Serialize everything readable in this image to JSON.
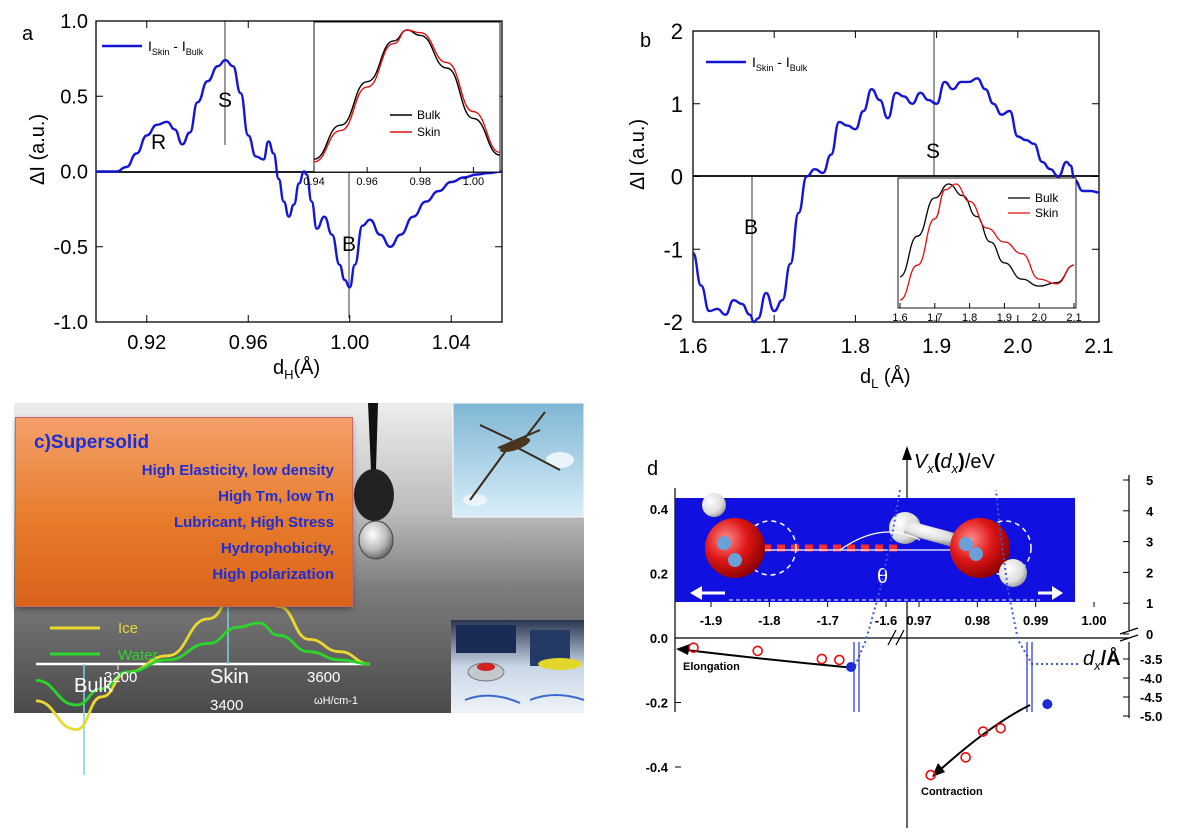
{
  "panel_a": {
    "label": "a",
    "legend": "I_Skin - I_Bulk",
    "legend_main": "I",
    "legend_sub1": "Skin",
    "legend_mid": " - I",
    "legend_sub2": "Bulk",
    "ylabel": "ΔI (a.u.)",
    "xlabel_main": "d",
    "xlabel_sub": "H",
    "xlabel_unit": "(Å)",
    "annotations": [
      "R",
      "S",
      "B"
    ],
    "inset_legend": [
      "Bulk",
      "Skin"
    ]
  },
  "panel_b": {
    "label": "b",
    "legend_main": "I",
    "legend_sub1": "Skin",
    "legend_mid": " - I",
    "legend_sub2": "Bulk",
    "ylabel": "ΔI (a.u.)",
    "xlabel_main": "d",
    "xlabel_sub": "L",
    "xlabel_unit": " (Å)",
    "annotations": [
      "S",
      "B"
    ],
    "inset_legend": [
      "Bulk",
      "Skin"
    ]
  },
  "panel_c": {
    "title": "c)Supersolid",
    "lines": [
      "High Elasticity, low density",
      "High Tm, low Tn",
      "Lubricant, High Stress",
      "Hydrophobicity,",
      "High polarization"
    ],
    "spectrum_legend": [
      "Ice",
      "Water"
    ],
    "spectrum_labels": [
      "Bulk",
      "Skin"
    ],
    "spectrum_ticks": [
      "3200",
      "3400",
      "3600"
    ],
    "spectrum_xlabel": "ωH/cm-1"
  },
  "panel_d": {
    "label": "d",
    "ylabel": "Vx(dx)/eV",
    "xlabel": "dx/Å",
    "theta": "θ",
    "left_annotation": "Elongation",
    "right_annotation": "Contraction",
    "left_yticks": [
      "0.4",
      "0.2",
      "0.0",
      "-0.2",
      "-0.4"
    ],
    "top_xticks": [
      "-1.9",
      "-1.8",
      "-1.7",
      "-1.6",
      "0.97",
      "0.98",
      "0.99",
      "1.00"
    ],
    "right_yticks_upper": [
      "5",
      "4",
      "3",
      "2",
      "1",
      "0"
    ],
    "right_yticks_lower": [
      "-3.5",
      "-4.0",
      "-4.5",
      "-5.0"
    ]
  },
  "colors": {
    "diff_curve": "#1515d6",
    "bulk": "#000000",
    "skin": "#e01010",
    "ice": "#e8d830",
    "water": "#2bd62b",
    "card_text": "#1c2fd6",
    "molecule_bg": "#1010e0"
  },
  "chart_data": [
    {
      "panel": "a",
      "type": "line",
      "xlabel": "dH(Å)",
      "ylabel": "ΔI (a.u.)",
      "xlim": [
        0.9,
        1.06
      ],
      "ylim": [
        -1.0,
        1.0
      ],
      "xticks": [
        0.92,
        0.96,
        1.0,
        1.04
      ],
      "yticks": [
        -1.0,
        -0.5,
        0.0,
        0.5,
        1.0
      ],
      "series": [
        {
          "name": "I_Skin - I_Bulk",
          "x": [
            0.9,
            0.908,
            0.912,
            0.916,
            0.92,
            0.924,
            0.928,
            0.931,
            0.934,
            0.937,
            0.94,
            0.944,
            0.948,
            0.951,
            0.954,
            0.957,
            0.96,
            0.963,
            0.966,
            0.968,
            0.97,
            0.972,
            0.974,
            0.976,
            0.978,
            0.98,
            0.982,
            0.983,
            0.985,
            0.987,
            0.99,
            0.993,
            0.996,
            0.998,
            1.0,
            1.002,
            1.005,
            1.008,
            1.012,
            1.016,
            1.02,
            1.025,
            1.03,
            1.035,
            1.04,
            1.045,
            1.05,
            1.055,
            1.06
          ],
          "y": [
            0.0,
            0.0,
            0.03,
            0.12,
            0.24,
            0.31,
            0.33,
            0.28,
            0.18,
            0.26,
            0.46,
            0.6,
            0.7,
            0.74,
            0.7,
            0.52,
            0.24,
            0.1,
            0.08,
            0.2,
            0.12,
            -0.05,
            -0.2,
            -0.3,
            -0.22,
            -0.08,
            0.0,
            -0.02,
            -0.2,
            -0.38,
            -0.3,
            -0.42,
            -0.62,
            -0.72,
            -0.77,
            -0.62,
            -0.36,
            -0.32,
            -0.42,
            -0.5,
            -0.42,
            -0.3,
            -0.2,
            -0.13,
            -0.07,
            -0.04,
            -0.02,
            -0.01,
            0.0
          ]
        }
      ],
      "annotations": [
        {
          "text": "R",
          "x": 0.928,
          "y": 0.33
        },
        {
          "text": "S",
          "x": 0.951,
          "y": 0.74
        },
        {
          "text": "B",
          "x": 1.0,
          "y": -0.77
        }
      ],
      "inset": {
        "xlim": [
          0.94,
          1.01
        ],
        "xticks": [
          0.94,
          0.96,
          0.98,
          1.0
        ],
        "series": [
          {
            "name": "Bulk",
            "x": [
              0.94,
              0.95,
              0.96,
              0.97,
              0.975,
              0.98,
              0.99,
              1.0,
              1.01
            ],
            "y": [
              0.05,
              0.3,
              0.62,
              0.92,
              1.0,
              0.96,
              0.72,
              0.35,
              0.08
            ]
          },
          {
            "name": "Skin",
            "x": [
              0.94,
              0.95,
              0.96,
              0.97,
              0.975,
              0.98,
              0.99,
              1.0,
              1.01
            ],
            "y": [
              0.03,
              0.26,
              0.58,
              0.9,
              1.0,
              0.98,
              0.76,
              0.4,
              0.1
            ]
          }
        ]
      }
    },
    {
      "panel": "b",
      "type": "line",
      "xlabel": "dL (Å)",
      "ylabel": "ΔI (a.u.)",
      "xlim": [
        1.6,
        2.1
      ],
      "ylim": [
        -2,
        2
      ],
      "xticks": [
        1.6,
        1.7,
        1.8,
        1.9,
        2.0,
        2.1
      ],
      "yticks": [
        -2,
        -1,
        0,
        1,
        2
      ],
      "series": [
        {
          "name": "I_Skin - I_Bulk",
          "x": [
            1.6,
            1.61,
            1.62,
            1.63,
            1.64,
            1.65,
            1.66,
            1.67,
            1.675,
            1.68,
            1.69,
            1.7,
            1.71,
            1.72,
            1.73,
            1.74,
            1.75,
            1.76,
            1.77,
            1.78,
            1.79,
            1.8,
            1.81,
            1.82,
            1.83,
            1.84,
            1.85,
            1.86,
            1.87,
            1.88,
            1.89,
            1.9,
            1.91,
            1.92,
            1.93,
            1.94,
            1.95,
            1.96,
            1.97,
            1.98,
            1.99,
            2.0,
            2.01,
            2.02,
            2.03,
            2.04,
            2.05,
            2.06,
            2.065,
            2.07,
            2.08,
            2.09,
            2.1
          ],
          "y": [
            -1.05,
            -1.5,
            -1.85,
            -1.82,
            -1.9,
            -1.7,
            -1.75,
            -1.9,
            -2.0,
            -1.95,
            -1.6,
            -1.85,
            -1.7,
            -1.2,
            -0.5,
            0.0,
            0.1,
            0.05,
            0.3,
            0.75,
            0.7,
            0.65,
            0.9,
            1.2,
            1.05,
            0.8,
            1.15,
            1.1,
            1.0,
            1.15,
            1.05,
            1.0,
            1.3,
            1.2,
            1.3,
            1.3,
            1.35,
            1.2,
            1.0,
            0.85,
            0.9,
            0.55,
            0.5,
            0.45,
            0.2,
            0.1,
            0.0,
            0.2,
            0.15,
            -0.05,
            -0.2,
            -0.2,
            -0.22
          ]
        }
      ],
      "annotations": [
        {
          "text": "S",
          "x": 1.9,
          "y": 1.05
        },
        {
          "text": "B",
          "x": 1.675,
          "y": -2.0
        }
      ],
      "inset": {
        "xlim": [
          1.6,
          2.1
        ],
        "xticks": [
          1.6,
          1.7,
          1.8,
          1.9,
          2.0,
          2.1
        ],
        "series": [
          {
            "name": "Bulk",
            "x": [
              1.6,
              1.65,
              1.7,
              1.74,
              1.78,
              1.82,
              1.86,
              1.9,
              1.95,
              2.0,
              2.05,
              2.1
            ],
            "y": [
              0.2,
              0.55,
              0.88,
              1.0,
              0.9,
              0.72,
              0.5,
              0.32,
              0.18,
              0.12,
              0.15,
              0.3
            ]
          },
          {
            "name": "Skin",
            "x": [
              1.6,
              1.65,
              1.7,
              1.73,
              1.76,
              1.8,
              1.85,
              1.9,
              1.95,
              2.0,
              2.05,
              2.1
            ],
            "y": [
              0.0,
              0.3,
              0.7,
              0.95,
              1.0,
              0.85,
              0.62,
              0.5,
              0.4,
              0.18,
              0.14,
              0.3
            ]
          }
        ]
      }
    },
    {
      "panel": "c",
      "type": "line",
      "xlabel": "ωH/cm-1",
      "xticks": [
        3200,
        3400,
        3600
      ],
      "series": [
        {
          "name": "Ice",
          "x": [
            3000,
            3080,
            3130,
            3180,
            3260,
            3340,
            3400,
            3440,
            3480,
            3540,
            3600,
            3660
          ],
          "y": [
            -0.45,
            -0.8,
            -0.4,
            -0.1,
            0.1,
            0.55,
            0.9,
            0.95,
            0.7,
            0.3,
            0.15,
            0.0
          ]
        },
        {
          "name": "Water",
          "x": [
            3000,
            3080,
            3130,
            3180,
            3260,
            3340,
            3400,
            3440,
            3480,
            3540,
            3600,
            3660
          ],
          "y": [
            -0.2,
            -0.5,
            -0.3,
            -0.1,
            0.05,
            0.25,
            0.45,
            0.5,
            0.35,
            0.15,
            0.05,
            0.0
          ]
        }
      ],
      "labels": [
        "Bulk",
        "Skin"
      ]
    },
    {
      "panel": "d",
      "type": "scatter",
      "xlabel": "dx/Å",
      "ylabel": "Vx(dx)/eV",
      "left_ylim": [
        -0.5,
        0.45
      ],
      "right_ylim_upper": [
        0,
        5
      ],
      "right_ylim_lower": [
        -5.0,
        -3.4
      ],
      "series": [
        {
          "name": "O:H elongation",
          "x": [
            -1.93,
            -1.82,
            -1.71,
            -1.68
          ],
          "y": [
            -0.03,
            -0.04,
            -0.065,
            -0.068
          ]
        },
        {
          "name": "H-O contraction",
          "x": [
            0.972,
            0.978,
            0.981,
            0.984
          ],
          "y": [
            -0.425,
            -0.37,
            -0.29,
            -0.28
          ]
        }
      ],
      "equilibrium_points": [
        {
          "x": -1.66,
          "y": -0.09
        },
        {
          "x": 0.992,
          "y": -0.205
        }
      ]
    }
  ]
}
